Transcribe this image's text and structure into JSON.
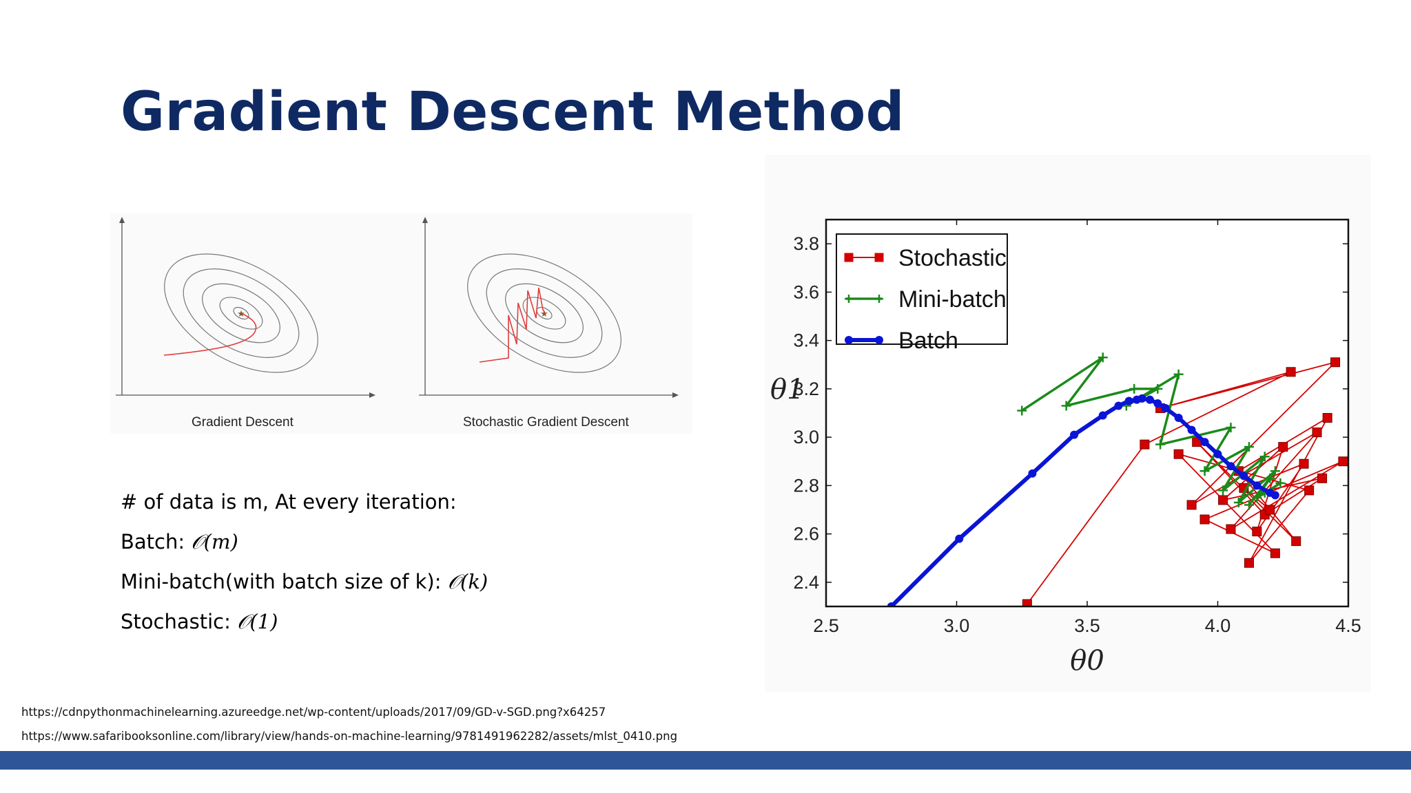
{
  "title": "Gradient Descent Method",
  "figure_left": {
    "captions": [
      "Gradient Descent",
      "Stochastic Gradient Descent"
    ]
  },
  "complexity_lines": [
    {
      "prefix": "# of data is m, At every iteration:",
      "expr": ""
    },
    {
      "prefix": "Batch: ",
      "expr": "𝒪(m)"
    },
    {
      "prefix": "Mini-batch(with batch size of k): ",
      "expr": "𝒪(k)"
    },
    {
      "prefix": "Stochastic: ",
      "expr": "𝒪(1)"
    }
  ],
  "references": [
    "https://cdnpythonmachinelearning.azureedge.net/wp-content/uploads/2017/09/GD-v-SGD.png?x64257",
    "https://www.safaribooksonline.com/library/view/hands-on-machine-learning/9781491962282/assets/mlst_0410.png"
  ],
  "colors": {
    "title": "#0f2a63",
    "footer_bar": "#2e5597",
    "stochastic": "#d40000",
    "mini_batch": "#1a8a1a",
    "batch": "#0a14d6"
  },
  "chart_data": {
    "type": "line",
    "xlabel": "θ0",
    "ylabel": "θ1",
    "xlim": [
      2.5,
      4.5
    ],
    "ylim": [
      2.3,
      3.9
    ],
    "xticks": [
      "2.5",
      "3.0",
      "3.5",
      "4.0",
      "4.5"
    ],
    "yticks": [
      "2.4",
      "2.6",
      "2.8",
      "3.0",
      "3.2",
      "3.4",
      "3.6",
      "3.8"
    ],
    "grid": false,
    "legend_position": "top-left",
    "series": [
      {
        "name": "Stochastic",
        "marker": "square",
        "color": "#d40000",
        "x": [
          3.27,
          3.72,
          4.28,
          3.78,
          4.45,
          3.9,
          4.38,
          4.05,
          4.48,
          3.95,
          4.22,
          3.85,
          4.35,
          4.12,
          4.42,
          4.08,
          4.3,
          3.92,
          4.18,
          4.4,
          4.02,
          4.25,
          4.15,
          4.33,
          4.1,
          4.2
        ],
        "y": [
          2.31,
          2.97,
          3.27,
          3.12,
          3.31,
          2.72,
          3.02,
          2.62,
          2.9,
          2.66,
          2.52,
          2.93,
          2.78,
          2.48,
          3.08,
          2.86,
          2.57,
          2.98,
          2.68,
          2.83,
          2.74,
          2.96,
          2.61,
          2.89,
          2.79,
          2.7
        ]
      },
      {
        "name": "Mini-batch",
        "marker": "plus",
        "color": "#1a8a1a",
        "x": [
          3.25,
          3.56,
          3.42,
          3.68,
          3.77,
          3.65,
          3.85,
          3.78,
          4.05,
          3.95,
          4.12,
          4.02,
          4.18,
          4.08,
          4.22,
          4.12,
          4.2,
          4.15,
          4.24,
          4.18
        ],
        "y": [
          3.11,
          3.33,
          3.13,
          3.2,
          3.2,
          3.13,
          3.26,
          2.97,
          3.04,
          2.86,
          2.96,
          2.78,
          2.92,
          2.73,
          2.86,
          2.72,
          2.83,
          2.75,
          2.81,
          2.77
        ]
      },
      {
        "name": "Batch",
        "marker": "circle",
        "color": "#0a14d6",
        "x": [
          2.75,
          3.01,
          3.29,
          3.45,
          3.56,
          3.62,
          3.66,
          3.69,
          3.71,
          3.74,
          3.77,
          3.8,
          3.85,
          3.9,
          3.95,
          4.0,
          4.05,
          4.1,
          4.15,
          4.2,
          4.22
        ],
        "y": [
          2.3,
          2.58,
          2.85,
          3.01,
          3.09,
          3.13,
          3.15,
          3.155,
          3.16,
          3.155,
          3.14,
          3.12,
          3.08,
          3.03,
          2.98,
          2.93,
          2.88,
          2.84,
          2.8,
          2.77,
          2.76
        ]
      }
    ]
  }
}
